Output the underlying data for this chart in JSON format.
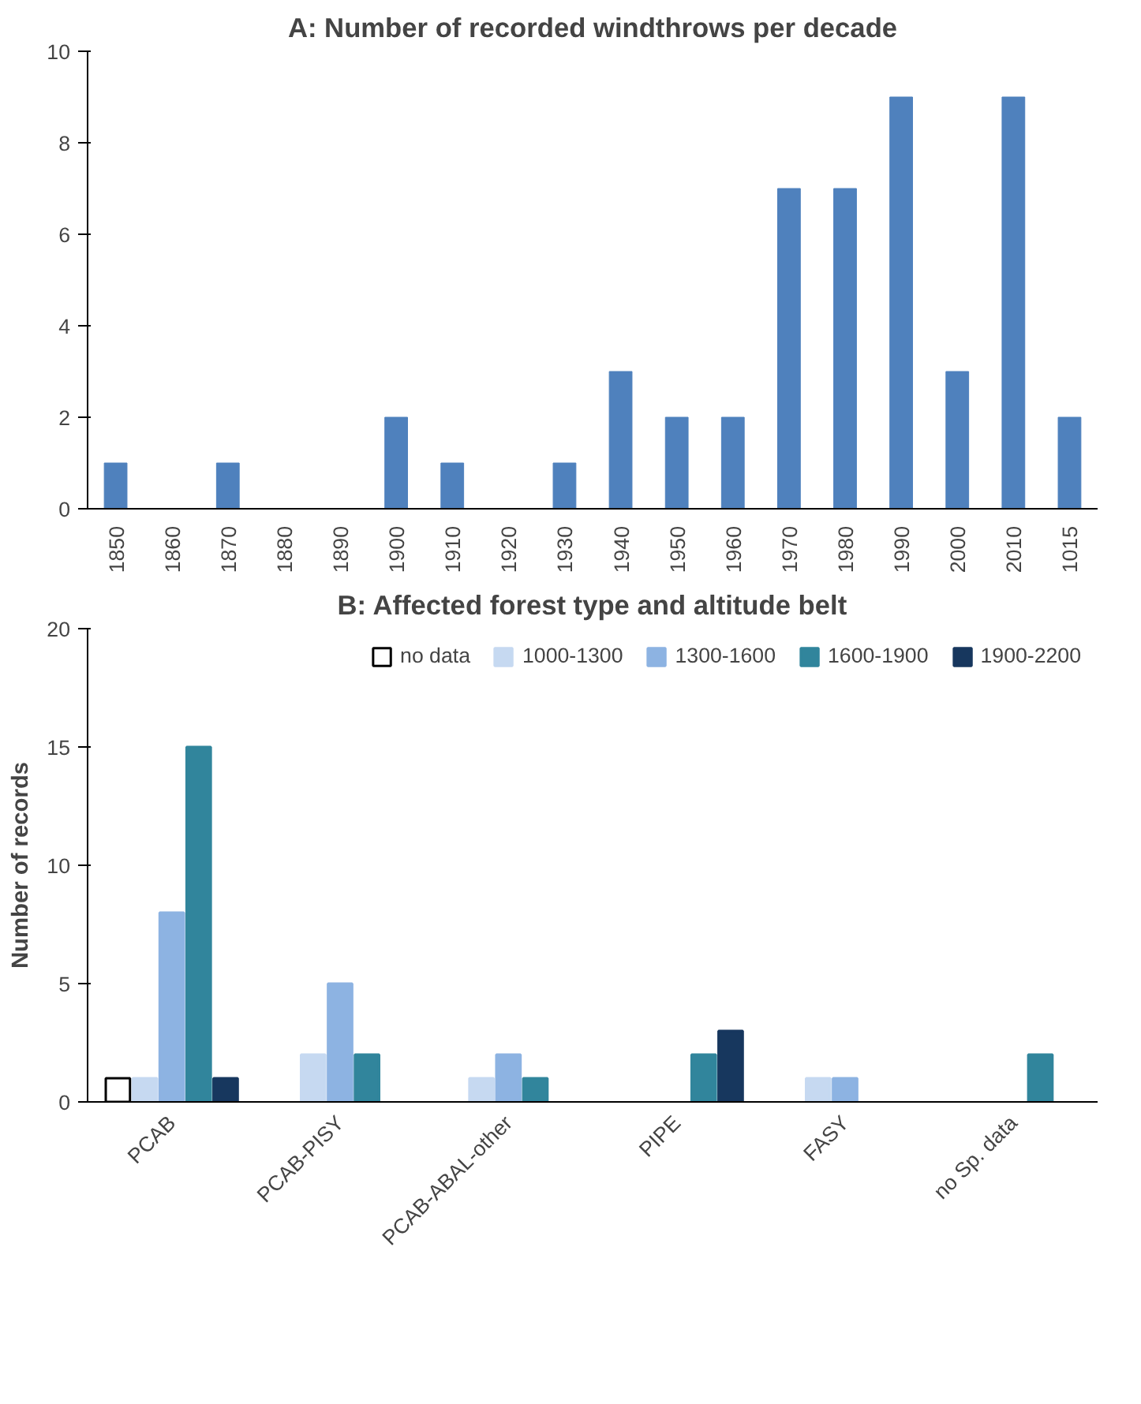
{
  "chart_data": [
    {
      "type": "bar",
      "title": "A: Number of recorded windthrows per decade",
      "categories": [
        "1850",
        "1860",
        "1870",
        "1880",
        "1890",
        "1900",
        "1910",
        "1920",
        "1930",
        "1940",
        "1950",
        "1960",
        "1970",
        "1980",
        "1990",
        "2000",
        "2010",
        "1015"
      ],
      "values": [
        1,
        0,
        1,
        0,
        0,
        2,
        1,
        0,
        1,
        3,
        2,
        2,
        7,
        7,
        9,
        3,
        9,
        2
      ],
      "color": "#4f81bd",
      "ylim": [
        0,
        10
      ],
      "yticks": [
        0,
        2,
        4,
        6,
        8,
        10
      ],
      "grid": false
    },
    {
      "type": "bar",
      "title": "B: Affected forest type and altitude belt",
      "ylabel": "Number of records",
      "categories": [
        "PCAB",
        "PCAB-PISY",
        "PCAB-ABAL-other",
        "PIPE",
        "FASY",
        "no Sp. data"
      ],
      "series": [
        {
          "name": "no data",
          "color": "#ffffff",
          "values": [
            1,
            0,
            0,
            0,
            0,
            0
          ]
        },
        {
          "name": "1000-1300",
          "color": "#c6d9f1",
          "values": [
            1,
            2,
            1,
            0,
            1,
            0
          ]
        },
        {
          "name": "1300-1600",
          "color": "#8db3e2",
          "values": [
            8,
            5,
            2,
            0,
            1,
            0
          ]
        },
        {
          "name": "1600-1900",
          "color": "#31859c",
          "values": [
            15,
            2,
            1,
            2,
            0,
            2
          ]
        },
        {
          "name": "1900-2200",
          "color": "#17375e",
          "values": [
            1,
            0,
            0,
            3,
            0,
            0
          ]
        }
      ],
      "ylim": [
        0,
        20
      ],
      "yticks": [
        0,
        5,
        10,
        15,
        20
      ],
      "grid": false,
      "legend": "top right"
    }
  ]
}
